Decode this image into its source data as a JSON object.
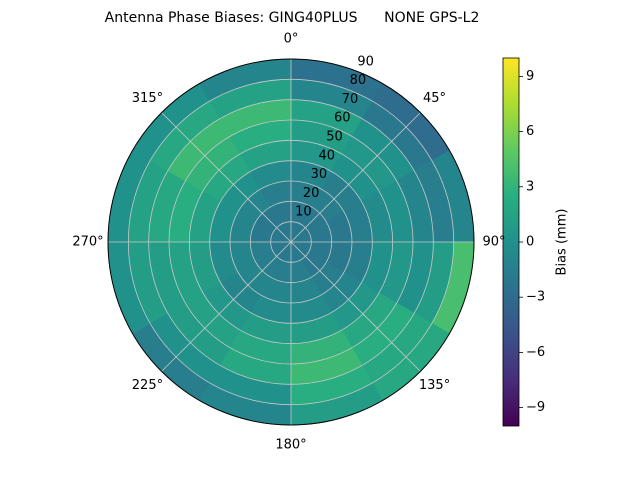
{
  "chart_data": {
    "type": "polar-contour",
    "title": "Antenna Phase Biases: GING40PLUS      NONE GPS-L2",
    "azimuth_edges": [
      0,
      30,
      60,
      90,
      120,
      150,
      180,
      210,
      240,
      270,
      300,
      330,
      360
    ],
    "zenith_edges": [
      0,
      10,
      20,
      30,
      40,
      50,
      60,
      70,
      80,
      90
    ],
    "values": [
      [
        -2,
        -2,
        -2,
        -2,
        -2,
        -2,
        -2,
        -2,
        -2,
        -2,
        -2,
        -2
      ],
      [
        -2,
        -2,
        -2,
        -2,
        -2,
        -1.5,
        -1.5,
        -1.5,
        -1.5,
        -2,
        -2,
        -2
      ],
      [
        -1.5,
        -1.5,
        -2,
        -2,
        -1.5,
        -1,
        -1,
        -1,
        -1,
        -1,
        -1,
        -1.5
      ],
      [
        -1,
        -1.5,
        -1.5,
        -1.5,
        -1,
        -0.5,
        -0.5,
        -1,
        -0.5,
        0,
        0,
        -0.5
      ],
      [
        0.5,
        0,
        -0.5,
        0,
        0.5,
        1,
        1,
        0.5,
        1,
        1.5,
        2,
        1.5
      ],
      [
        1,
        0.5,
        0,
        0.5,
        2,
        3,
        2,
        1.5,
        1.5,
        2.5,
        3,
        2.5
      ],
      [
        1.5,
        0,
        -1,
        0,
        2.5,
        3.5,
        2,
        1,
        1,
        2,
        3.5,
        3.5
      ],
      [
        -1,
        -2,
        -1.5,
        1,
        2,
        2.5,
        0,
        0,
        1,
        1.5,
        2,
        1.5
      ],
      [
        -2.5,
        -3,
        -1,
        4,
        2,
        1,
        -1,
        -1.5,
        0,
        0,
        0,
        -1
      ]
    ],
    "rlim": [
      0,
      90
    ],
    "rticks": [
      10,
      20,
      30,
      40,
      50,
      60,
      70,
      80,
      90
    ],
    "thetaticks": [
      {
        "value": 0,
        "label": "0°"
      },
      {
        "value": 45,
        "label": "45°"
      },
      {
        "value": 90,
        "label": "90°"
      },
      {
        "value": 135,
        "label": "135°"
      },
      {
        "value": 180,
        "label": "180°"
      },
      {
        "value": 225,
        "label": "225°"
      },
      {
        "value": 270,
        "label": "270°"
      },
      {
        "value": 315,
        "label": "315°"
      }
    ],
    "clim": [
      -10,
      10
    ],
    "cticks": [
      {
        "value": -9,
        "label": "−9"
      },
      {
        "value": -6,
        "label": "−6"
      },
      {
        "value": -3,
        "label": "−3"
      },
      0,
      3,
      6,
      9
    ],
    "colorbar_label": "Bias (mm)",
    "colormap": "viridis",
    "grid": true
  }
}
